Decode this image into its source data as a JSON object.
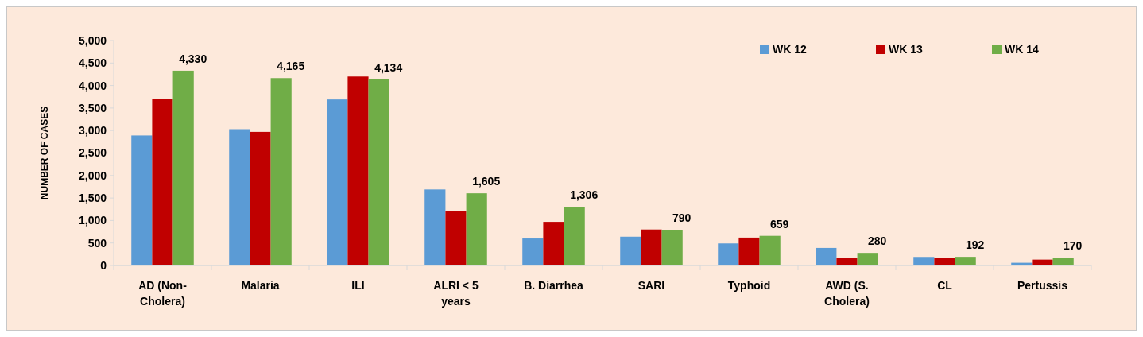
{
  "chart_data": {
    "type": "bar",
    "ylabel": "NUMBER OF CASES",
    "categories": [
      "AD (Non-Cholera)",
      "Malaria",
      "ILI",
      "ALRI < 5 years",
      "B. Diarrhea",
      "SARI",
      "Typhoid",
      "AWD (S. Cholera)",
      "CL",
      "Pertussis"
    ],
    "series": [
      {
        "name": "WK 12",
        "color": "#5b9bd5",
        "values": [
          2890,
          3030,
          3690,
          1690,
          600,
          640,
          490,
          390,
          190,
          60
        ]
      },
      {
        "name": "WK 13",
        "color": "#c00000",
        "values": [
          3710,
          2970,
          4200,
          1210,
          970,
          800,
          620,
          170,
          160,
          130
        ]
      },
      {
        "name": "WK 14",
        "color": "#70ad47",
        "values": [
          4330,
          4165,
          4134,
          1605,
          1306,
          790,
          659,
          280,
          192,
          170
        ],
        "value_labels": [
          "4,330",
          "4,165",
          "4,134",
          "1,605",
          "1,306",
          "790",
          "659",
          "280",
          "192",
          "170"
        ]
      }
    ],
    "ylim": [
      0,
      5000
    ],
    "yticks": [
      {
        "value": 0,
        "label": "0"
      },
      {
        "value": 500,
        "label": "500"
      },
      {
        "value": 1000,
        "label": "1,000"
      },
      {
        "value": 1500,
        "label": "1,500"
      },
      {
        "value": 2000,
        "label": "2,000"
      },
      {
        "value": 2500,
        "label": "2,500"
      },
      {
        "value": 3000,
        "label": "3,000"
      },
      {
        "value": 3500,
        "label": "3,500"
      },
      {
        "value": 4000,
        "label": "4,000"
      },
      {
        "value": 4500,
        "label": "4,500"
      },
      {
        "value": 5000,
        "label": "5,000"
      }
    ],
    "legend": "top right"
  }
}
